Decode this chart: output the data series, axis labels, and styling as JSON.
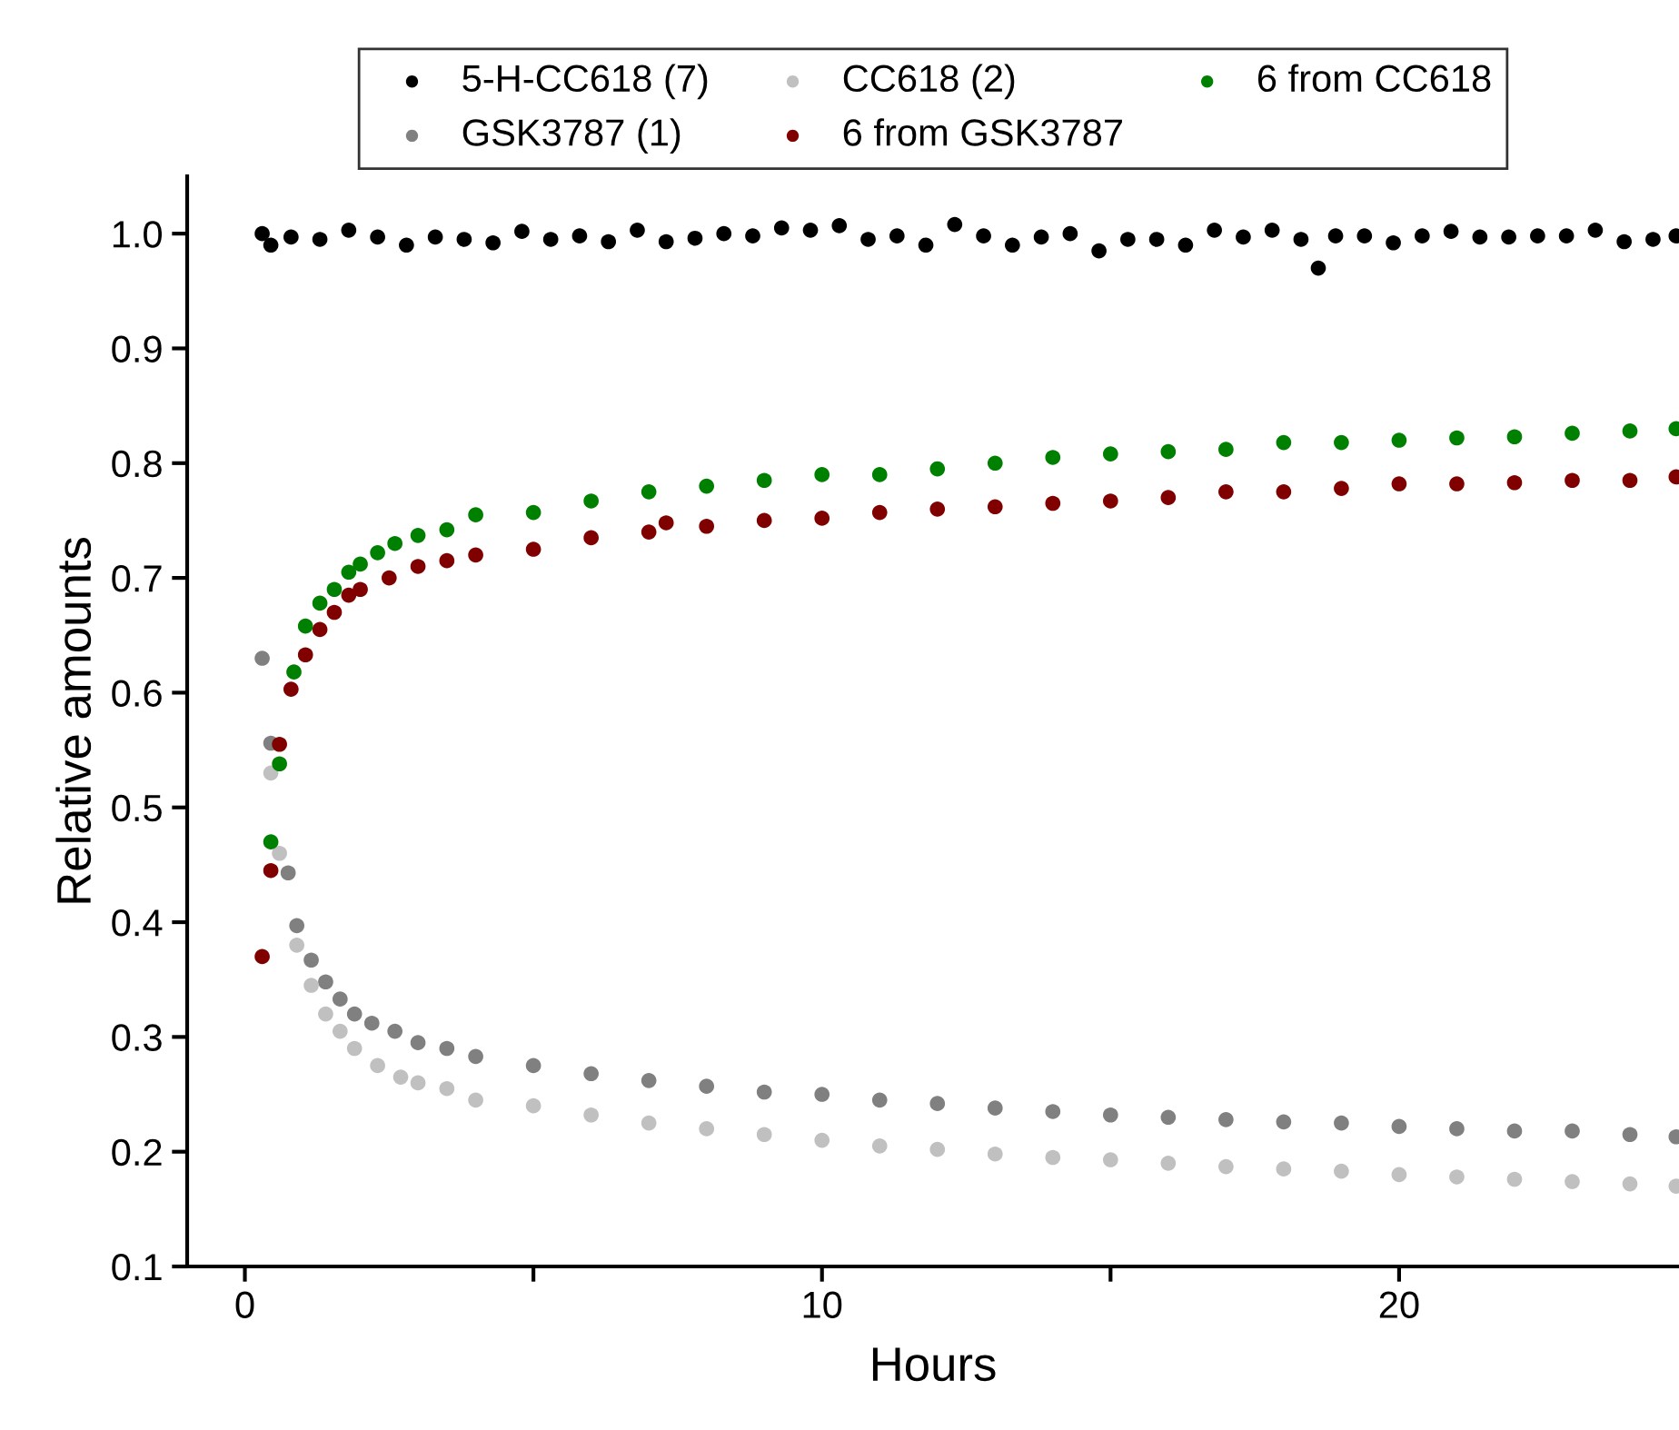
{
  "chart_data": {
    "type": "scatter",
    "xlabel": "Hours",
    "ylabel": "Relative amounts",
    "xlim": [
      -1,
      24.85
    ],
    "ylim": [
      0.1,
      1.05
    ],
    "xticks": [
      0,
      {
        "value": 5,
        "label": null
      },
      10,
      {
        "value": 15,
        "label": null
      },
      20
    ],
    "yticks": [
      0.1,
      0.2,
      0.3,
      0.4,
      0.5,
      0.6,
      0.7,
      0.8,
      0.9,
      {
        "value": 1,
        "label": "1.0"
      }
    ],
    "legend": "top",
    "grid": false,
    "marker": "circle",
    "series": [
      {
        "name": "5-H-CC618 (7)",
        "color": "#000000",
        "x": [
          0.3,
          0.45,
          0.8,
          1.3,
          1.8,
          2.3,
          2.8,
          3.3,
          3.8,
          4.3,
          4.8,
          5.3,
          5.8,
          6.3,
          6.8,
          7.3,
          7.8,
          8.3,
          8.8,
          9.3,
          9.8,
          10.3,
          10.8,
          11.3,
          11.8,
          12.3,
          12.8,
          13.3,
          13.8,
          14.3,
          14.8,
          15.3,
          15.8,
          16.3,
          16.8,
          17.3,
          17.8,
          18.3,
          18.6,
          18.9,
          19.4,
          19.9,
          20.4,
          20.9,
          21.4,
          21.9,
          22.4,
          22.9,
          23.4,
          23.9,
          24.4,
          24.8
        ],
        "values": [
          1.0,
          0.99,
          0.997,
          0.995,
          1.003,
          0.997,
          0.99,
          0.997,
          0.995,
          0.992,
          1.002,
          0.995,
          0.998,
          0.993,
          1.003,
          0.993,
          0.996,
          1.0,
          0.998,
          1.005,
          1.003,
          1.007,
          0.995,
          0.998,
          0.99,
          1.008,
          0.998,
          0.99,
          0.997,
          1.0,
          0.985,
          0.995,
          0.995,
          0.99,
          1.003,
          0.997,
          1.003,
          0.995,
          0.97,
          0.998,
          0.998,
          0.992,
          0.998,
          1.002,
          0.997,
          0.997,
          0.998,
          0.998,
          1.003,
          0.993,
          0.995,
          0.998
        ]
      },
      {
        "name": "GSK3787 (1)",
        "color": "#808080",
        "x": [
          0.3,
          0.45,
          0.75,
          0.9,
          1.15,
          1.4,
          1.65,
          1.9,
          2.2,
          2.6,
          3,
          3.5,
          4,
          5,
          6,
          7,
          8,
          9,
          10,
          11,
          12,
          13,
          14,
          15,
          16,
          17,
          18,
          19,
          20,
          21,
          22,
          23,
          24,
          24.8
        ],
        "values": [
          0.63,
          0.556,
          0.443,
          0.397,
          0.367,
          0.348,
          0.333,
          0.32,
          0.312,
          0.305,
          0.295,
          0.29,
          0.283,
          0.275,
          0.268,
          0.262,
          0.257,
          0.252,
          0.25,
          0.245,
          0.242,
          0.238,
          0.235,
          0.232,
          0.23,
          0.228,
          0.226,
          0.225,
          0.222,
          0.22,
          0.218,
          0.218,
          0.215,
          0.213
        ]
      },
      {
        "name": "CC618 (2)",
        "color": "#c0c0c0",
        "x": [
          0.45,
          0.6,
          0.9,
          1.15,
          1.4,
          1.65,
          1.9,
          2.3,
          2.7,
          3,
          3.5,
          4,
          5,
          6,
          7,
          8,
          9,
          10,
          11,
          12,
          13,
          14,
          15,
          16,
          17,
          18,
          19,
          20,
          21,
          22,
          23,
          24,
          24.8
        ],
        "values": [
          0.53,
          0.46,
          0.38,
          0.345,
          0.32,
          0.305,
          0.29,
          0.275,
          0.265,
          0.26,
          0.255,
          0.245,
          0.24,
          0.232,
          0.225,
          0.22,
          0.215,
          0.21,
          0.205,
          0.202,
          0.198,
          0.195,
          0.193,
          0.19,
          0.187,
          0.185,
          0.183,
          0.18,
          0.178,
          0.176,
          0.174,
          0.172,
          0.17
        ]
      },
      {
        "name": "6 from GSK3787",
        "color": "#800000",
        "x": [
          0.3,
          0.45,
          0.6,
          0.8,
          1.05,
          1.3,
          1.55,
          1.8,
          2.0,
          2.5,
          3,
          3.5,
          4,
          5,
          6,
          7,
          7.3,
          8,
          9,
          10,
          11,
          12,
          13,
          14,
          15,
          16,
          17,
          18,
          19,
          20,
          21,
          22,
          23,
          24,
          24.8
        ],
        "values": [
          0.37,
          0.445,
          0.555,
          0.603,
          0.633,
          0.655,
          0.67,
          0.685,
          0.69,
          0.7,
          0.71,
          0.715,
          0.72,
          0.725,
          0.735,
          0.74,
          0.748,
          0.745,
          0.75,
          0.752,
          0.757,
          0.76,
          0.762,
          0.765,
          0.767,
          0.77,
          0.775,
          0.775,
          0.778,
          0.782,
          0.782,
          0.783,
          0.785,
          0.785,
          0.788
        ]
      },
      {
        "name": "6 from CC618",
        "color": "#008000",
        "x": [
          0.45,
          0.6,
          0.85,
          1.05,
          1.3,
          1.55,
          1.8,
          2,
          2.3,
          2.6,
          3,
          3.5,
          4,
          5,
          6,
          7,
          8,
          9,
          10,
          11,
          12,
          13,
          14,
          15,
          16,
          17,
          18,
          19,
          20,
          21,
          22,
          23,
          24,
          24.8
        ],
        "values": [
          0.47,
          0.538,
          0.618,
          0.658,
          0.678,
          0.69,
          0.705,
          0.712,
          0.722,
          0.73,
          0.737,
          0.742,
          0.755,
          0.757,
          0.767,
          0.775,
          0.78,
          0.785,
          0.79,
          0.79,
          0.795,
          0.8,
          0.805,
          0.808,
          0.81,
          0.812,
          0.818,
          0.818,
          0.82,
          0.822,
          0.823,
          0.826,
          0.828,
          0.83
        ]
      }
    ]
  }
}
